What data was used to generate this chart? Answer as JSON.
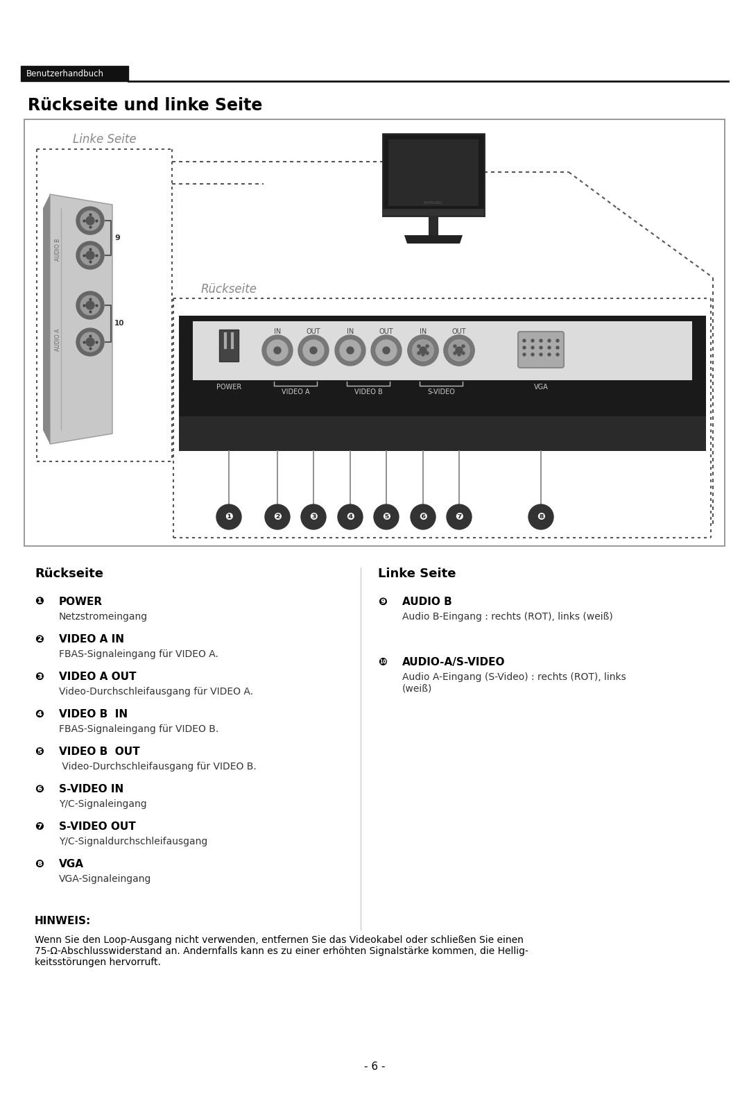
{
  "page_bg": "#ffffff",
  "header_bar_color": "#111111",
  "header_text": "Benutzerhandbuch",
  "header_text_color": "#ffffff",
  "title": "Rückseite und linke Seite",
  "linke_seite_label": "Linke Seite",
  "ruckseite_label": "Rückseite",
  "left_section_title": "Rückseite",
  "right_section_title": "Linke Seite",
  "left_items": [
    {
      "num": "❶",
      "bold": "POWER",
      "desc": "Netzstromeingang"
    },
    {
      "num": "❷",
      "bold": "VIDEO A IN",
      "desc": "FBAS-Signaleingang für VIDEO A."
    },
    {
      "num": "❸",
      "bold": "VIDEO A OUT",
      "desc": "Video-Durchschleifausgang für VIDEO A."
    },
    {
      "num": "❹",
      "bold": "VIDEO B  IN",
      "desc": "FBAS-Signaleingang für VIDEO B."
    },
    {
      "num": "❺",
      "bold": "VIDEO B  OUT",
      "desc": " Video-Durchschleifausgang für VIDEO B."
    },
    {
      "num": "❻",
      "bold": "S-VIDEO IN",
      "desc": "Y/C-Signaleingang"
    },
    {
      "num": "❼",
      "bold": "S-VIDEO OUT",
      "desc": "Y/C-Signaldurchschleifausgang"
    },
    {
      "num": "❽",
      "bold": "VGA",
      "desc": "VGA-Signaleingang"
    }
  ],
  "right_items": [
    {
      "num": "❾",
      "bold": "AUDIO B",
      "desc": "Audio B-Eingang : rechts (ROT), links (weiß)"
    },
    {
      "num": "❿",
      "bold": "AUDIO-A/S-VIDEO",
      "desc": "Audio A-Eingang (S-Video) : rechts (ROT), links\n(weiß)"
    }
  ],
  "hinweis_title": "HINWEIS:",
  "hinweis_text": "Wenn Sie den Loop-Ausgang nicht verwenden, entfernen Sie das Videokabel oder schließen Sie einen\n75-Ω-Abschlusswiderstand an. Andernfalls kann es zu einer erhöhten Signalstärke kommen, die Hellig-\nkeitsstörungen hervorruft.",
  "page_number": "- 6 -"
}
